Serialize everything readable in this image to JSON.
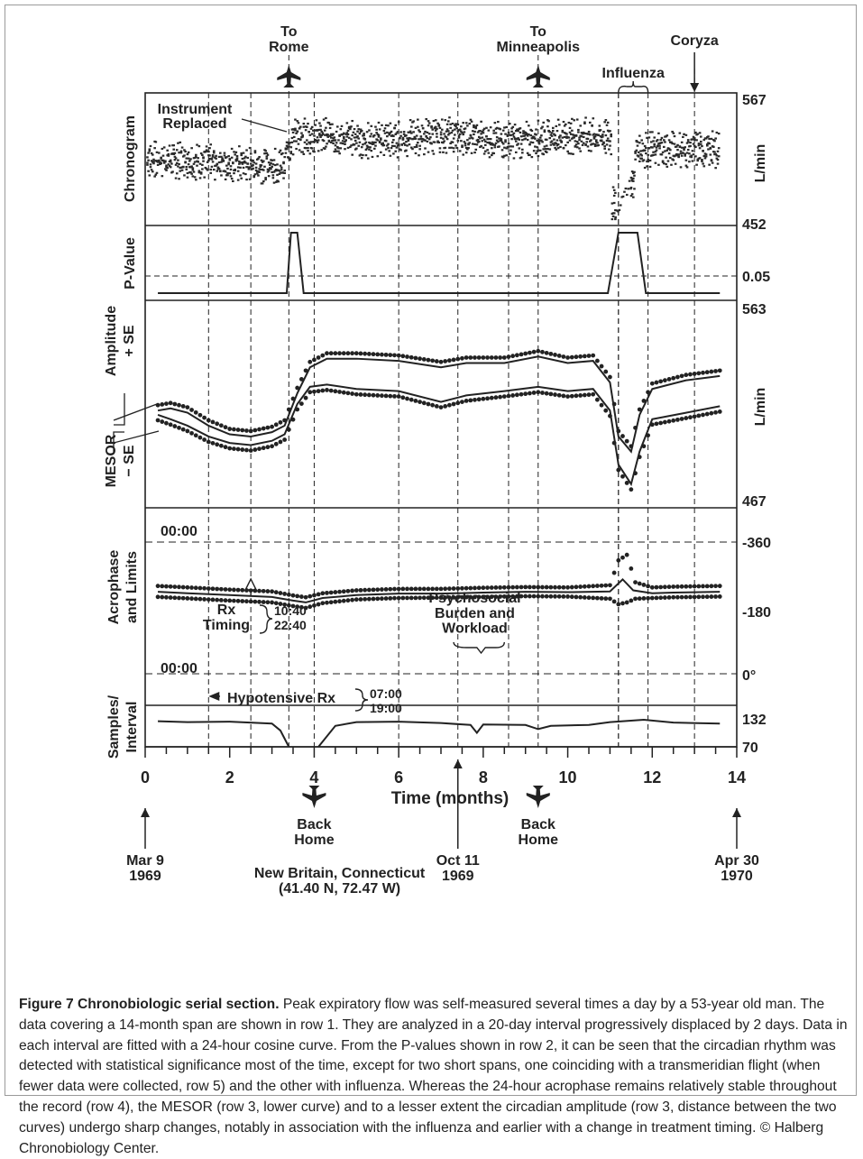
{
  "chart_data": {
    "type": "line",
    "xlabel": "Time (months)",
    "xlim": [
      0,
      14
    ],
    "x_ticks": [
      "0",
      "2",
      "4",
      "6",
      "8",
      "10",
      "12",
      "14"
    ],
    "rows": {
      "chronogram": {
        "ylabel": "Chronogram",
        "unit": "L/min",
        "ylim": [
          452,
          567
        ],
        "ymax_label": "567",
        "ymin_label": "452",
        "note": "Instrument Replaced"
      },
      "pvalue": {
        "ylabel": "P-Value",
        "threshold": 0.05,
        "threshold_label": "0.05",
        "points": [
          [
            0.3,
            0
          ],
          [
            3.35,
            0
          ],
          [
            3.45,
            1
          ],
          [
            3.6,
            1
          ],
          [
            3.75,
            0
          ],
          [
            10.95,
            0
          ],
          [
            11.2,
            1
          ],
          [
            11.65,
            1
          ],
          [
            11.85,
            0
          ],
          [
            13.6,
            0
          ]
        ]
      },
      "amplitude_mesor": {
        "ylabel_top": "Amplitude",
        "ylabel_top2": "+ SE",
        "ylabel_bottom": "MESOR",
        "ylabel_bottom2": "− SE",
        "unit": "L/min",
        "ylim": [
          467,
          563
        ],
        "ymax_label": "563",
        "ymin_label": "467",
        "upper": [
          [
            0.3,
            512
          ],
          [
            0.6,
            513
          ],
          [
            1,
            511
          ],
          [
            1.5,
            505
          ],
          [
            2,
            501
          ],
          [
            2.5,
            500
          ],
          [
            3,
            502
          ],
          [
            3.3,
            505
          ],
          [
            3.6,
            520
          ],
          [
            3.9,
            532
          ],
          [
            4.3,
            536
          ],
          [
            5,
            536
          ],
          [
            6,
            535
          ],
          [
            7,
            532
          ],
          [
            7.6,
            534
          ],
          [
            8.5,
            534
          ],
          [
            9.3,
            537
          ],
          [
            10,
            534
          ],
          [
            10.6,
            535
          ],
          [
            11,
            525
          ],
          [
            11.2,
            500
          ],
          [
            11.5,
            493
          ],
          [
            11.7,
            510
          ],
          [
            12,
            522
          ],
          [
            12.8,
            526
          ],
          [
            13.6,
            528
          ]
        ],
        "upper_band": [
          [
            0.3,
            514.5
          ],
          [
            0.6,
            515.5
          ],
          [
            1,
            513.5
          ],
          [
            1.5,
            507.5
          ],
          [
            2,
            503.5
          ],
          [
            2.5,
            502.5
          ],
          [
            3,
            504.5
          ],
          [
            3.3,
            507.5
          ],
          [
            3.6,
            522.5
          ],
          [
            3.9,
            534.5
          ],
          [
            4.3,
            538.5
          ],
          [
            5,
            538.5
          ],
          [
            6,
            537.5
          ],
          [
            7,
            534.5
          ],
          [
            7.6,
            536.5
          ],
          [
            8.5,
            536.5
          ],
          [
            9.3,
            539.5
          ],
          [
            10,
            536.5
          ],
          [
            10.6,
            537.5
          ],
          [
            11,
            527.5
          ],
          [
            11.2,
            502.5
          ],
          [
            11.5,
            495.5
          ],
          [
            11.7,
            512.5
          ],
          [
            12,
            524.5
          ],
          [
            12.8,
            528.5
          ],
          [
            13.6,
            530.5
          ]
        ],
        "lower": [
          [
            0.3,
            510
          ],
          [
            0.6,
            508
          ],
          [
            1,
            505
          ],
          [
            1.5,
            500
          ],
          [
            2,
            497
          ],
          [
            2.5,
            496
          ],
          [
            3,
            498
          ],
          [
            3.3,
            501
          ],
          [
            3.6,
            515
          ],
          [
            3.9,
            523
          ],
          [
            4.3,
            524
          ],
          [
            5,
            522
          ],
          [
            6,
            521
          ],
          [
            7,
            516
          ],
          [
            7.6,
            519
          ],
          [
            8.5,
            521
          ],
          [
            9.3,
            523
          ],
          [
            10,
            521
          ],
          [
            10.6,
            522
          ],
          [
            11,
            512
          ],
          [
            11.2,
            487
          ],
          [
            11.5,
            478
          ],
          [
            11.7,
            493
          ],
          [
            12,
            508
          ],
          [
            12.8,
            511
          ],
          [
            13.6,
            514
          ]
        ],
        "lower_band": [
          [
            0.3,
            507.5
          ],
          [
            0.6,
            505.5
          ],
          [
            1,
            502.5
          ],
          [
            1.5,
            497.5
          ],
          [
            2,
            494.5
          ],
          [
            2.5,
            493.5
          ],
          [
            3,
            495.5
          ],
          [
            3.3,
            498.5
          ],
          [
            3.6,
            512.5
          ],
          [
            3.9,
            520.5
          ],
          [
            4.3,
            521.5
          ],
          [
            5,
            519.5
          ],
          [
            6,
            518.5
          ],
          [
            7,
            513.5
          ],
          [
            7.6,
            516.5
          ],
          [
            8.5,
            518.5
          ],
          [
            9.3,
            520.5
          ],
          [
            10,
            518.5
          ],
          [
            10.6,
            519.5
          ],
          [
            11,
            509.5
          ],
          [
            11.2,
            484.5
          ],
          [
            11.5,
            475.5
          ],
          [
            11.7,
            490.5
          ],
          [
            12,
            505.5
          ],
          [
            12.8,
            508.5
          ],
          [
            13.6,
            511.5
          ]
        ]
      },
      "acrophase": {
        "ylabel": "Acrophase",
        "ylabel2": "and Limits",
        "ylim": [
          0,
          -360
        ],
        "tick_top": "-360",
        "tick_mid": "-180",
        "tick_bottom": "0°",
        "time_top": "00:00",
        "time_bottom": "00:00",
        "main": [
          [
            0.3,
            -224
          ],
          [
            1,
            -220
          ],
          [
            2,
            -215
          ],
          [
            3,
            -210
          ],
          [
            3.5,
            -200
          ],
          [
            3.8,
            -195
          ],
          [
            4.2,
            -207
          ],
          [
            5,
            -215
          ],
          [
            6,
            -219
          ],
          [
            7,
            -219
          ],
          [
            8,
            -222
          ],
          [
            9,
            -224
          ],
          [
            10,
            -223
          ],
          [
            11,
            -225
          ],
          [
            11.3,
            -258
          ],
          [
            11.55,
            -228
          ],
          [
            12,
            -220
          ],
          [
            12.5,
            -222
          ],
          [
            13.6,
            -224
          ]
        ],
        "upper_limit": [
          [
            0.3,
            -240
          ],
          [
            1,
            -236
          ],
          [
            2,
            -230
          ],
          [
            3,
            -225
          ],
          [
            3.5,
            -214
          ],
          [
            3.8,
            -209
          ],
          [
            4.2,
            -220
          ],
          [
            5,
            -228
          ],
          [
            6,
            -232
          ],
          [
            7,
            -232
          ],
          [
            8,
            -235
          ],
          [
            9,
            -237
          ],
          [
            10,
            -236
          ],
          [
            11,
            -242
          ],
          [
            11.2,
            -310
          ],
          [
            11.4,
            -325
          ],
          [
            11.6,
            -250
          ],
          [
            12,
            -236
          ],
          [
            12.5,
            -238
          ],
          [
            13.6,
            -240
          ]
        ],
        "lower_limit": [
          [
            0.3,
            -210
          ],
          [
            1,
            -206
          ],
          [
            2,
            -200
          ],
          [
            3,
            -195
          ],
          [
            3.5,
            -185
          ],
          [
            3.8,
            -180
          ],
          [
            4.2,
            -193
          ],
          [
            5,
            -203
          ],
          [
            6,
            -207
          ],
          [
            7,
            -208
          ],
          [
            8,
            -210
          ],
          [
            9,
            -212
          ],
          [
            10,
            -211
          ],
          [
            11,
            -205
          ],
          [
            11.2,
            -190
          ],
          [
            11.4,
            -195
          ],
          [
            11.6,
            -205
          ],
          [
            12,
            -207
          ],
          [
            12.5,
            -209
          ],
          [
            13.6,
            -211
          ]
        ]
      },
      "samples": {
        "ylabel": "Samples/",
        "ylabel2": "Interval",
        "ylim": [
          70,
          132
        ],
        "ymax_label": "132",
        "ymin_label": "70",
        "points": [
          [
            0.3,
            125
          ],
          [
            1,
            123
          ],
          [
            2,
            124
          ],
          [
            3,
            120
          ],
          [
            3.2,
            105
          ],
          [
            3.4,
            70
          ],
          [
            4.1,
            70
          ],
          [
            4.5,
            115
          ],
          [
            5,
            123
          ],
          [
            6,
            124
          ],
          [
            7,
            121
          ],
          [
            7.7,
            117
          ],
          [
            7.85,
            100
          ],
          [
            8,
            118
          ],
          [
            9,
            117
          ],
          [
            9.3,
            108
          ],
          [
            9.6,
            115
          ],
          [
            10.5,
            117
          ],
          [
            11,
            123
          ],
          [
            11.8,
            128
          ],
          [
            12.5,
            122
          ],
          [
            13.6,
            120
          ]
        ]
      }
    },
    "events": {
      "to_rome": "To\nRome",
      "to_minneapolis": "To\nMinneapolis",
      "influenza": "Influenza",
      "coryza": "Coryza",
      "back_home": "Back\nHome",
      "new_britain": "New Britain, Connecticut",
      "coords": "(41.40 N, 72.47 W)",
      "mar": "Mar 9\n1969",
      "oct": "Oct 11\n1969",
      "apr": "Apr 30\n1970",
      "rx_timing": "Rx\nTiming",
      "rx_t1": "10:40",
      "rx_t2": "22:40",
      "psychosocial": "Psychosocial\nBurden and\nWorkload",
      "hypotensive": "Hypotensive Rx",
      "hyp_t1": "07:00",
      "hyp_t2": "19:00"
    }
  },
  "caption": {
    "label": "Figure 7 Chronobiologic serial section.",
    "text": " Peak expiratory flow was self-measured several times a day by a 53-year old man. The data covering a 14-month span are shown in row 1. They are analyzed in a 20-day interval progressively displaced by 2 days. Data in each interval are fitted with a 24-hour cosine curve. From the P-values shown in row 2, it can be seen that the circadian rhythm was detected with statistical significance most of the time, except for two short spans, one coinciding with a transmeridian flight (when fewer data were collected, row 5) and the other with influenza. Whereas the 24-hour acrophase remains relatively stable throughout the record (row 4), the MESOR (row 3, lower curve) and to a lesser extent the circadian amplitude (row 3, distance between the two curves) undergo sharp changes, notably in association with the influenza and earlier with a change in treatment timing. © Halberg Chronobiology Center."
  }
}
